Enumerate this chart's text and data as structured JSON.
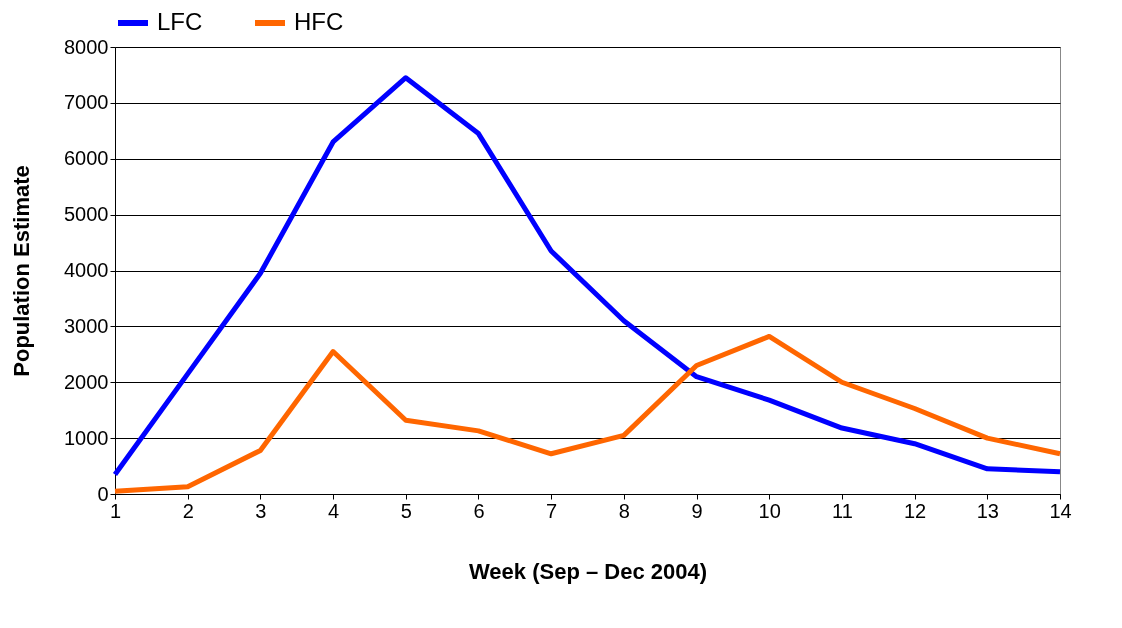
{
  "chart_data": {
    "type": "line",
    "xlabel": "Week (Sep – Dec 2004)",
    "ylabel": "Population Estimate",
    "x": [
      1,
      2,
      3,
      4,
      5,
      6,
      7,
      8,
      9,
      10,
      11,
      12,
      13,
      14
    ],
    "series": [
      {
        "name": "LFC",
        "color": "#0000ff",
        "values": [
          350,
          2150,
          3950,
          6300,
          7450,
          6450,
          4350,
          3100,
          2100,
          1680,
          1180,
          900,
          450,
          400
        ]
      },
      {
        "name": "HFC",
        "color": "#ff6600",
        "values": [
          50,
          130,
          780,
          2550,
          1320,
          1130,
          720,
          1050,
          2300,
          2820,
          2000,
          1530,
          1000,
          720
        ]
      }
    ],
    "xlim": [
      1,
      14
    ],
    "xticks": [
      1,
      2,
      3,
      4,
      5,
      6,
      7,
      8,
      9,
      10,
      11,
      12,
      13,
      14
    ],
    "ylim": [
      0,
      8000
    ],
    "yticks": [
      0,
      1000,
      2000,
      3000,
      4000,
      5000,
      6000,
      7000,
      8000
    ],
    "grid": "y",
    "legend": "top",
    "marker": "none",
    "line_style": "solid"
  }
}
